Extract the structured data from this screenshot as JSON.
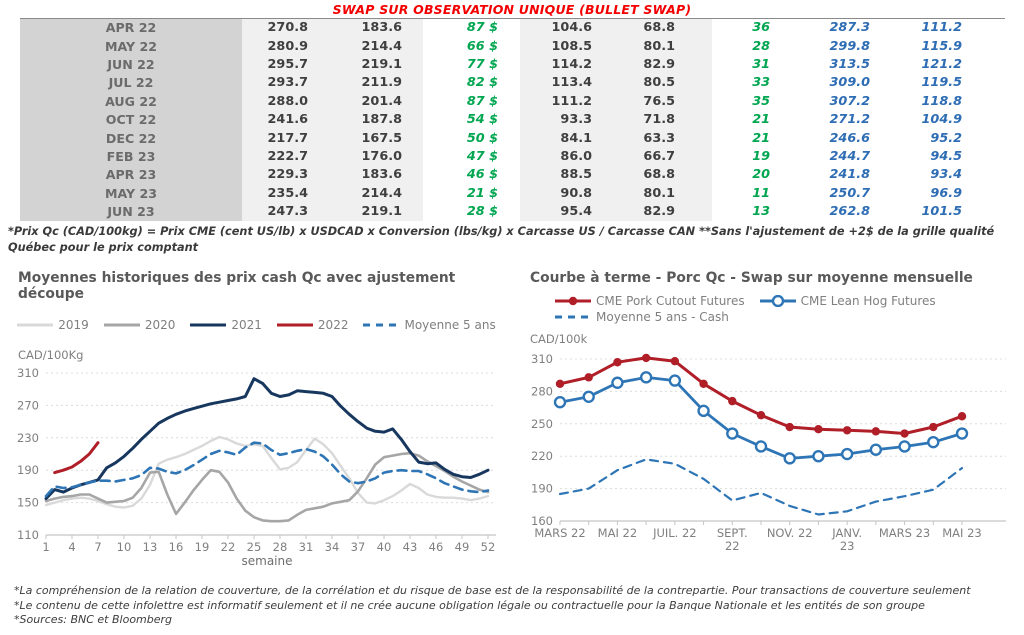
{
  "page_title": "SWAP SUR OBSERVATION UNIQUE (BULLET SWAP)",
  "table": {
    "rows": [
      [
        "APR 22",
        "270.8",
        "183.6",
        "87 $",
        "104.6",
        "68.8",
        "36",
        "287.3",
        "111.2"
      ],
      [
        "MAY 22",
        "280.9",
        "214.4",
        "66 $",
        "108.5",
        "80.1",
        "28",
        "299.8",
        "115.9"
      ],
      [
        "JUN 22",
        "295.7",
        "219.1",
        "77 $",
        "114.2",
        "82.9",
        "31",
        "313.5",
        "121.2"
      ],
      [
        "JUL 22",
        "293.7",
        "211.9",
        "82 $",
        "113.4",
        "80.5",
        "33",
        "309.0",
        "119.5"
      ],
      [
        "AUG 22",
        "288.0",
        "201.4",
        "87 $",
        "111.2",
        "76.5",
        "35",
        "307.2",
        "118.8"
      ],
      [
        "OCT 22",
        "241.6",
        "187.8",
        "54 $",
        "93.3",
        "71.8",
        "21",
        "271.2",
        "104.9"
      ],
      [
        "DEC 22",
        "217.7",
        "167.5",
        "50 $",
        "84.1",
        "63.3",
        "21",
        "246.6",
        "95.2"
      ],
      [
        "FEB 23",
        "222.7",
        "176.0",
        "47 $",
        "86.0",
        "66.7",
        "19",
        "244.7",
        "94.5"
      ],
      [
        "APR 23",
        "229.3",
        "183.6",
        "46 $",
        "88.5",
        "68.8",
        "20",
        "241.8",
        "93.4"
      ],
      [
        "MAY 23",
        "235.4",
        "214.4",
        "21 $",
        "90.8",
        "80.1",
        "11",
        "250.7",
        "96.9"
      ],
      [
        "JUN 23",
        "247.3",
        "219.1",
        "28 $",
        "95.4",
        "82.9",
        "13",
        "262.8",
        "101.5"
      ]
    ]
  },
  "table_footnote": "*Prix Qc (CAD/100kg) = Prix CME (cent US/lb) x USDCAD x Conversion (lbs/kg) x Carcasse US / Carcasse CAN **Sans l'ajustement de +2$ de la grille qualité Québec pour le prix comptant",
  "colors": {
    "title_red": "#f40000",
    "table_green": "#00a650",
    "table_blue": "#2e6db4",
    "navy": "#17375e",
    "dark_red": "#b01e28",
    "steel_blue": "#2e75b6",
    "gray_2020": "#a6a6a6",
    "light_gray_2019": "#d9d9d9"
  },
  "chart_data": [
    {
      "type": "line",
      "name": "historical-cash-prices",
      "title": "Moyennes historiques des prix cash Qc avec ajustement découpe",
      "ylabel": "CAD/100Kg",
      "xlabel": "semaine",
      "ylim": [
        110,
        310
      ],
      "yticks": [
        110,
        150,
        190,
        230,
        270,
        310
      ],
      "x_count": 52,
      "xticks": [
        1,
        4,
        7,
        10,
        13,
        16,
        19,
        22,
        25,
        28,
        31,
        34,
        37,
        40,
        43,
        46,
        49,
        52
      ],
      "grid": "dashed-horizontal",
      "legend_position": "top-center",
      "series": [
        {
          "name": "2019",
          "color": "#d9d9d9",
          "width": 2.4,
          "values": [
            147,
            150,
            153,
            155,
            156,
            155,
            152,
            148,
            145,
            144,
            146,
            155,
            172,
            198,
            203,
            206,
            210,
            215,
            220,
            226,
            231,
            228,
            223,
            220,
            222,
            220,
            205,
            191,
            193,
            200,
            215,
            229,
            222,
            211,
            195,
            180,
            162,
            150,
            149,
            153,
            158,
            165,
            173,
            168,
            160,
            157,
            156,
            156,
            155,
            153,
            155,
            158
          ]
        },
        {
          "name": "2020",
          "color": "#a6a6a6",
          "width": 2.6,
          "values": [
            152,
            155,
            157,
            158,
            160,
            160,
            155,
            150,
            151,
            152,
            156,
            168,
            187,
            188,
            160,
            136,
            150,
            165,
            178,
            190,
            188,
            175,
            155,
            140,
            132,
            128,
            127,
            127,
            128,
            135,
            141,
            143,
            145,
            149,
            151,
            153,
            164,
            180,
            197,
            206,
            208,
            210,
            211,
            208,
            201,
            195,
            189,
            182,
            176,
            171,
            166,
            163
          ]
        },
        {
          "name": "2021",
          "color": "#17375e",
          "width": 3,
          "values": [
            155,
            166,
            163,
            168,
            172,
            175,
            178,
            193,
            199,
            207,
            217,
            228,
            238,
            248,
            254,
            259,
            263,
            266,
            269,
            272,
            274,
            276,
            278,
            281,
            303,
            297,
            285,
            281,
            283,
            288,
            287,
            286,
            285,
            281,
            269,
            259,
            250,
            242,
            238,
            237,
            241,
            228,
            213,
            200,
            198,
            199,
            191,
            185,
            182,
            181,
            185,
            190
          ]
        },
        {
          "name": "2022",
          "color": "#b01e28",
          "width": 3,
          "values": [
            null,
            187,
            190,
            194,
            201,
            210,
            224
          ]
        },
        {
          "name": "Moyenne 5 ans",
          "color": "#2e75b6",
          "width": 2.6,
          "dash": "9 6",
          "values": [
            158,
            170,
            168,
            169,
            172,
            175,
            177,
            177,
            176,
            178,
            180,
            184,
            193,
            192,
            188,
            186,
            190,
            196,
            203,
            210,
            214,
            212,
            209,
            218,
            224,
            223,
            215,
            209,
            211,
            214,
            216,
            213,
            207,
            197,
            185,
            176,
            174,
            176,
            180,
            187,
            189,
            190,
            189,
            189,
            185,
            180,
            174,
            170,
            166,
            164,
            163,
            165
          ]
        }
      ]
    },
    {
      "type": "line",
      "name": "forward-curve",
      "title": "Courbe à terme - Porc Qc - Swap sur moyenne mensuelle",
      "ylabel": "CAD/100k",
      "xlabel": "",
      "ylim": [
        160,
        310
      ],
      "yticks": [
        160,
        190,
        220,
        250,
        280,
        310
      ],
      "x_count": 15,
      "xticks": [
        {
          "i": 0,
          "label": "MARS 22"
        },
        {
          "i": 2,
          "label": "MAI 22"
        },
        {
          "i": 4,
          "label": "JUIL. 22"
        },
        {
          "i": 6,
          "label": "SEPT.\n22"
        },
        {
          "i": 8,
          "label": "NOV. 22"
        },
        {
          "i": 10,
          "label": "JANV.\n23"
        },
        {
          "i": 12,
          "label": "MARS 23"
        },
        {
          "i": 14,
          "label": "MAI 23"
        }
      ],
      "minor_ticks_every_point": true,
      "grid": "dashed-horizontal",
      "legend_position": "top-left-two-rows",
      "series": [
        {
          "name": "CME Pork Cutout Futures",
          "color": "#b01e28",
          "width": 3,
          "marker": "filled-circle",
          "values": [
            287,
            293,
            307,
            311,
            308,
            287,
            271,
            258,
            247,
            245,
            244,
            243,
            241,
            247,
            257
          ]
        },
        {
          "name": "CME Lean Hog Futures",
          "color": "#2e75b6",
          "width": 2.8,
          "marker": "open-circle",
          "values": [
            270,
            275,
            288,
            293,
            290,
            262,
            241,
            229,
            218,
            220,
            222,
            226,
            229,
            233,
            241
          ]
        },
        {
          "name": "Moyenne 5 ans - Cash",
          "color": "#2e75b6",
          "width": 2.2,
          "dash": "8 6",
          "values": [
            185,
            190,
            207,
            217,
            213,
            199,
            179,
            186,
            174,
            166,
            169,
            178,
            183,
            189,
            209
          ]
        }
      ]
    }
  ],
  "footnotes": [
    "*La compréhension de la relation de couverture, de la corrélation et du risque de base est de la responsabilité de la contrepartie. Pour transactions de couverture seulement",
    "*Le contenu de cette infolettre est informatif seulement et il ne crée aucune obligation légale ou contractuelle pour la Banque Nationale et les entités de son groupe",
    "*Sources: BNC et Bloomberg"
  ]
}
